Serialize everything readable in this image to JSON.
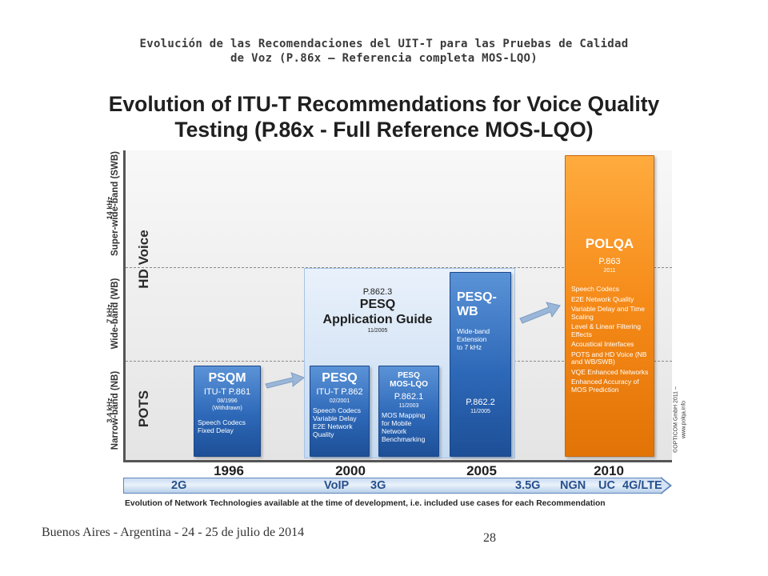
{
  "slide": {
    "title_line1": "Evolución de las Recomendaciones del UIT-T para las Pruebas de Calidad",
    "title_line2": "de Voz (P.86x – Referencia completa MOS-LQO)",
    "footer_location": "Buenos Aires - Argentina - 24 - 25 de julio de 2014",
    "page_number": "28"
  },
  "figure": {
    "title_line1": "Evolution of ITU-T Recommendations for Voice Quality",
    "title_line2": "Testing (P.86x - Full Reference MOS-LQO)",
    "bands": [
      {
        "name": "Super-wide-band (SWB)",
        "freq": "14 kHz"
      },
      {
        "name": "Wide-band (WB)",
        "freq": "7 kHz"
      },
      {
        "name": "Narrow-band (NB)",
        "freq": "3.4 kHz"
      }
    ],
    "groups": {
      "hd_voice": "HD Voice",
      "pots": "POTS"
    },
    "psqm": {
      "name": "PSQM",
      "rec": "ITU-T P.861",
      "date": "08/1996",
      "note": "(Withdrawn)",
      "features": [
        "Speech Codecs",
        "Fixed Delay"
      ]
    },
    "pesq": {
      "name": "PESQ",
      "rec": "ITU-T P.862",
      "date": "02/2001",
      "features": [
        "Speech Codecs",
        "Variable Delay",
        "E2E Network",
        "Quality"
      ]
    },
    "pesq_mos": {
      "name_line1": "PESQ",
      "name_line2": "MOS-LQO",
      "rec": "P.862.1",
      "date": "11/2003",
      "features": [
        "MOS Mapping",
        "for Mobile",
        "Network",
        "Benchmarking"
      ]
    },
    "guide": {
      "rec": "P.862.3",
      "name_line1": "PESQ",
      "name_line2": "Application Guide",
      "date": "11/2005"
    },
    "pesq_wb": {
      "name_line1": "PESQ-",
      "name_line2": "WB",
      "features": [
        "Wide-band",
        "Extension",
        "to 7 kHz"
      ],
      "rec": "P.862.2",
      "date": "11/2005"
    },
    "polqa": {
      "name": "POLQA",
      "rec": "P.863",
      "date": "2011",
      "features": [
        "Speech Codecs",
        "E2E Network Quality",
        "Variable Delay and Time Scaling",
        "Level & Linear Filtering Effects",
        "Acoustical Interfaces",
        "POTS and HD Voice (NB and WB/SWB)",
        "VQE Enhanced Networks",
        "Enhanced Accuracy of MOS Prediction"
      ]
    },
    "years": [
      "1996",
      "2000",
      "2005",
      "2010"
    ],
    "networks": [
      "2G",
      "VoIP",
      "3G",
      "3.5G",
      "NGN",
      "UC",
      "4G/LTE"
    ],
    "caption": "Evolution of Network Technologies available at the time of development, i.e. included use cases for each Recommendation",
    "credit_line1": "©OPTICOM GmbH 2011 –",
    "credit_line2": "www.polqa.info",
    "colors": {
      "blue": "#2d68b8",
      "orange": "#f58a18",
      "guide_bg": "#d7e6f6"
    }
  }
}
